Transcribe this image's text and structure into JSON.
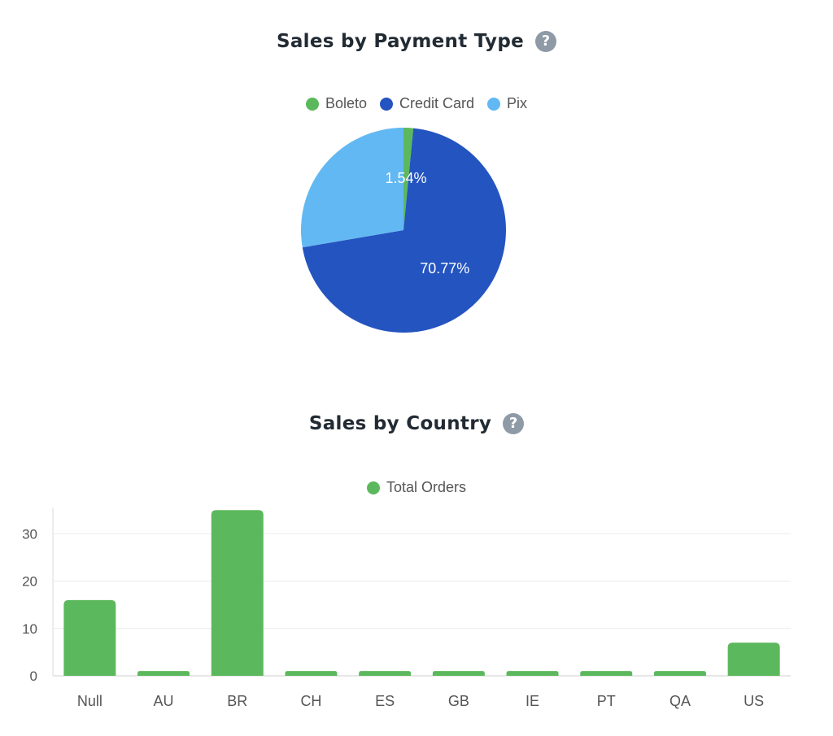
{
  "pie_section": {
    "title": "Sales by Payment Type",
    "help_icon": "?"
  },
  "bar_section": {
    "title": "Sales by Country",
    "help_icon": "?"
  },
  "chart_data": [
    {
      "type": "pie",
      "title": "Sales by Payment Type",
      "categories": [
        "Boleto",
        "Credit Card",
        "Pix"
      ],
      "values": [
        1.54,
        70.77,
        27.69
      ],
      "colors": [
        "#5cb85c",
        "#2454c0",
        "#62b8f2"
      ],
      "data_labels": [
        "1.54%",
        "70.77%",
        ""
      ],
      "legend": "top"
    },
    {
      "type": "bar",
      "title": "Sales by Country",
      "series": [
        {
          "name": "Total Orders",
          "color": "#5cb85c",
          "values": [
            16,
            1,
            35,
            1,
            1,
            1,
            1,
            1,
            1,
            7
          ]
        }
      ],
      "categories": [
        "Null",
        "AU",
        "BR",
        "CH",
        "ES",
        "GB",
        "IE",
        "PT",
        "QA",
        "US"
      ],
      "yticks": [
        0,
        10,
        20,
        30
      ],
      "ylim": [
        0,
        35
      ],
      "grid": true,
      "legend": "top"
    }
  ]
}
